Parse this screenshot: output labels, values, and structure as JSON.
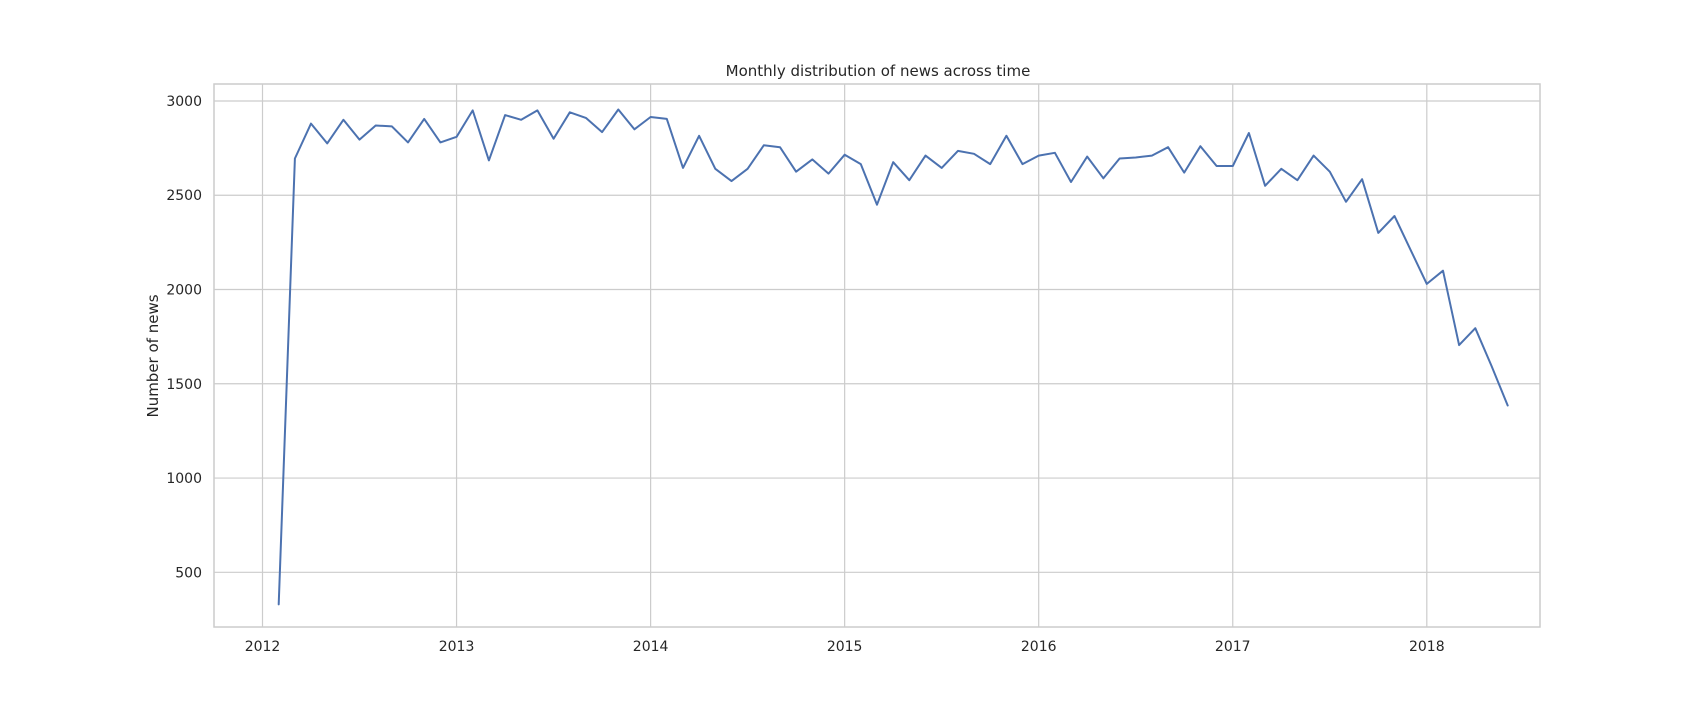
{
  "chart_data": {
    "type": "line",
    "title": "Monthly distribution of news across time",
    "xlabel": "",
    "ylabel": "Number of news",
    "x_ticks": [
      "2012",
      "2013",
      "2014",
      "2015",
      "2016",
      "2017",
      "2018"
    ],
    "y_ticks": [
      "500",
      "1000",
      "1500",
      "2000",
      "2500",
      "3000"
    ],
    "xlim": [
      "2011-10",
      "2018-08"
    ],
    "ylim": [
      210,
      3090
    ],
    "grid": true,
    "colors": {
      "line": "#4c72b0",
      "grid": "#cccccc",
      "frame": "#cccccc"
    },
    "series": [
      {
        "x": [
          "2012-02",
          "2012-03",
          "2012-04",
          "2012-05",
          "2012-06",
          "2012-07",
          "2012-08",
          "2012-09",
          "2012-10",
          "2012-11",
          "2012-12",
          "2013-01",
          "2013-02",
          "2013-03",
          "2013-04",
          "2013-05",
          "2013-06",
          "2013-07",
          "2013-08",
          "2013-09",
          "2013-10",
          "2013-11",
          "2013-12",
          "2014-01",
          "2014-02",
          "2014-03",
          "2014-04",
          "2014-05",
          "2014-06",
          "2014-07",
          "2014-08",
          "2014-09",
          "2014-10",
          "2014-11",
          "2014-12",
          "2015-01",
          "2015-02",
          "2015-03",
          "2015-04",
          "2015-05",
          "2015-06",
          "2015-07",
          "2015-08",
          "2015-09",
          "2015-10",
          "2015-11",
          "2015-12",
          "2016-01",
          "2016-02",
          "2016-03",
          "2016-04",
          "2016-05",
          "2016-06",
          "2016-07",
          "2016-08",
          "2016-09",
          "2016-10",
          "2016-11",
          "2016-12",
          "2017-01",
          "2017-02",
          "2017-03",
          "2017-04",
          "2017-05",
          "2017-06",
          "2017-07",
          "2017-08",
          "2017-09",
          "2017-10",
          "2017-11",
          "2017-12",
          "2018-01",
          "2018-02",
          "2018-03",
          "2018-04",
          "2018-05",
          "2018-06"
        ],
        "values": [
          330,
          2695,
          2880,
          2775,
          2900,
          2795,
          2870,
          2865,
          2780,
          2905,
          2780,
          2810,
          2950,
          2685,
          2925,
          2900,
          2950,
          2800,
          2940,
          2910,
          2835,
          2955,
          2850,
          2915,
          2905,
          2645,
          2815,
          2640,
          2575,
          2640,
          2765,
          2755,
          2625,
          2690,
          2615,
          2715,
          2665,
          2450,
          2675,
          2580,
          2710,
          2645,
          2735,
          2720,
          2665,
          2815,
          2665,
          2710,
          2725,
          2570,
          2705,
          2590,
          2695,
          2700,
          2710,
          2755,
          2620,
          2760,
          2655,
          2655,
          2830,
          2550,
          2640,
          2580,
          2710,
          2625,
          2465,
          2585,
          2300,
          2390,
          2210,
          2030,
          2100,
          1705,
          1795,
          1595,
          1385
        ]
      }
    ]
  }
}
